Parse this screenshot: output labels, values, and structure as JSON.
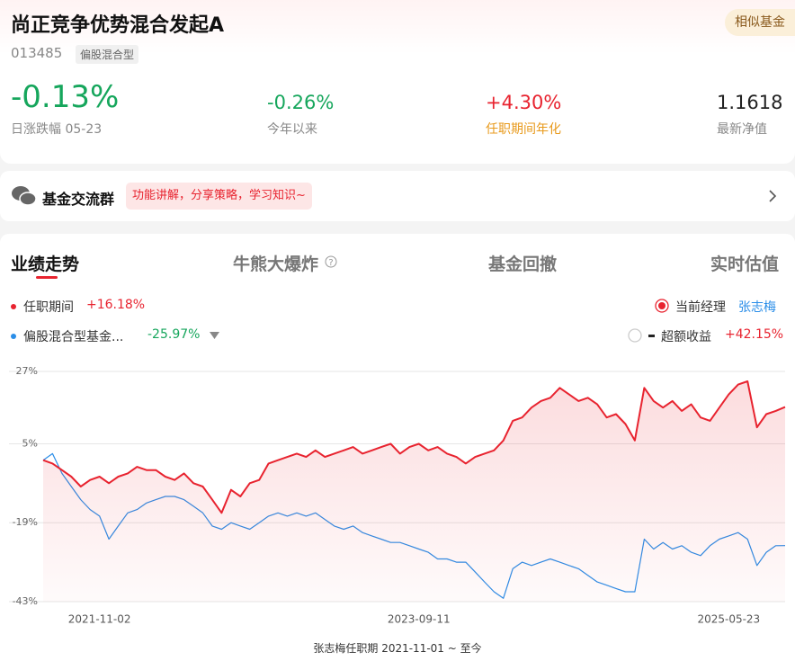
{
  "header": {
    "title": "尚正竞争优势混合发起A",
    "similar": "相似基金",
    "code": "013485",
    "tag": "偏股混合型"
  },
  "stats": [
    {
      "value": "-0.13%",
      "label": "日涨跌幅 05-23"
    },
    {
      "value": "-0.26%",
      "label": "今年以来"
    },
    {
      "value": "+4.30%",
      "label": "任职期间年化"
    },
    {
      "value": "1.1618",
      "label": "最新净值"
    }
  ],
  "group": {
    "title": "基金交流群",
    "badge": "功能讲解，分享策略，学习知识~"
  },
  "tabs": [
    "业绩走势",
    "牛熊大爆炸",
    "基金回撤",
    "实时估值"
  ],
  "manager": {
    "label": "当前经理",
    "name": "张志梅"
  },
  "excess": {
    "label": "超额收益",
    "value": "+42.15%"
  },
  "footer": "张志梅任职期 2021-11-01 ~ 至今",
  "chart_data": {
    "type": "line",
    "categories": [
      null,
      null,
      null,
      null,
      null,
      null,
      "2021-11-02",
      null,
      null,
      null,
      null,
      null,
      null,
      null,
      null,
      null,
      null,
      null,
      null,
      null,
      null,
      null,
      null,
      null,
      null,
      null,
      null,
      null,
      null,
      null,
      null,
      null,
      null,
      null,
      null,
      null,
      null,
      null,
      null,
      null,
      "2023-09-11",
      null,
      null,
      null,
      null,
      null,
      null,
      null,
      null,
      null,
      null,
      null,
      null,
      null,
      null,
      null,
      null,
      null,
      null,
      null,
      null,
      null,
      null,
      null,
      null,
      null,
      null,
      null,
      null,
      null,
      null,
      null,
      null,
      "2025-05-23",
      null,
      null,
      null,
      null,
      null,
      null
    ],
    "series": [
      {
        "name": "任职期间",
        "change": "+16.18%",
        "color": "#e8232f",
        "values": [
          0,
          -1,
          -3,
          -5,
          -8,
          -6,
          -5,
          -7,
          -5,
          -4,
          -2,
          -3,
          -3,
          -5,
          -6,
          -4,
          -7,
          -8,
          -12,
          -16,
          -9,
          -11,
          -7,
          -6,
          -1,
          0,
          1,
          2,
          1,
          3,
          1,
          2,
          3,
          4,
          2,
          3,
          4,
          5,
          2,
          4,
          5,
          3,
          4,
          2,
          1,
          -1,
          1,
          2,
          3,
          6,
          12,
          13,
          16,
          18,
          19,
          22,
          20,
          18,
          19,
          17,
          13,
          14,
          11,
          6,
          22,
          18,
          16,
          18,
          15,
          17,
          13,
          12,
          16,
          20,
          23,
          24,
          10,
          14,
          15,
          16.18
        ]
      },
      {
        "name": "偏股混合型基金...",
        "change": "-25.97%",
        "color": "#2b8ee8",
        "values": [
          0,
          2,
          -4,
          -8,
          -12,
          -15,
          -17,
          -24,
          -20,
          -16,
          -15,
          -13,
          -12,
          -11,
          -11,
          -12,
          -14,
          -16,
          -20,
          -21,
          -19,
          -20,
          -21,
          -19,
          -17,
          -16,
          -17,
          -16,
          -17,
          -16,
          -18,
          -20,
          -21,
          -20,
          -22,
          -23,
          -24,
          -25,
          -25,
          -26,
          -27,
          -28,
          -30,
          -30,
          -31,
          -31,
          -34,
          -37,
          -40,
          -42,
          -33,
          -31,
          -32,
          -31,
          -30,
          -31,
          -32,
          -33,
          -35,
          -37,
          -38,
          -39,
          -40,
          -40,
          -24,
          -27,
          -25,
          -27,
          -26,
          -28,
          -29,
          -26,
          -24,
          -23,
          -22,
          -24,
          -32,
          -28,
          -26,
          -25.97
        ]
      }
    ],
    "ylim": [
      -43,
      27
    ],
    "yticks": [
      {
        "value": 27,
        "label": "27%"
      },
      {
        "value": 5,
        "label": "5%"
      },
      {
        "value": -19,
        "label": "-19%"
      },
      {
        "value": -43,
        "label": "-43%"
      }
    ],
    "grid": true
  }
}
